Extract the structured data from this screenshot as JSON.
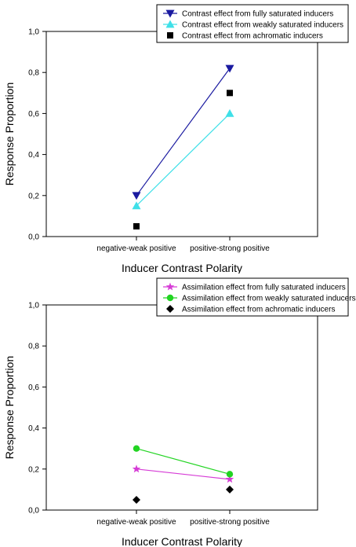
{
  "chart_data": [
    {
      "type": "line",
      "xlabel": "Inducer Contrast Polarity",
      "ylabel": "Response Proportion",
      "categories": [
        "negative-weak positive",
        "positive-strong positive"
      ],
      "ylim": [
        0,
        1
      ],
      "y_ticks": [
        "0,0",
        "0,2",
        "0,4",
        "0,6",
        "0,8",
        "1,0"
      ],
      "grid": false,
      "legend_position": "top-right",
      "series": [
        {
          "name": "Contrast effect from fully saturated inducers",
          "values": [
            0.2,
            0.82
          ],
          "color": "#1a1aa0",
          "marker": "triangle-down",
          "line": true
        },
        {
          "name": "Contrast effect from weakly saturated inducers",
          "values": [
            0.15,
            0.6
          ],
          "color": "#3fe0e8",
          "marker": "triangle-up",
          "line": true
        },
        {
          "name": "Contrast effect from achromatic inducers",
          "values": [
            0.05,
            0.7
          ],
          "color": "#000000",
          "marker": "square",
          "line": false
        }
      ]
    },
    {
      "type": "line",
      "xlabel": "Inducer Contrast Polarity",
      "ylabel": "Response Proportion",
      "categories": [
        "negative-weak positive",
        "positive-strong positive"
      ],
      "ylim": [
        0,
        1
      ],
      "y_ticks": [
        "0,0",
        "0,2",
        "0,4",
        "0,6",
        "0,8",
        "1,0"
      ],
      "grid": false,
      "legend_position": "top-right",
      "series": [
        {
          "name": "Assimilation effect from fully saturated inducers",
          "values": [
            0.2,
            0.15
          ],
          "color": "#d63cd6",
          "marker": "star",
          "line": true
        },
        {
          "name": "Assimilation effect from weakly saturated inducers",
          "values": [
            0.3,
            0.175
          ],
          "color": "#22d422",
          "marker": "circle",
          "line": true
        },
        {
          "name": "Assimilation effect from achromatic inducers",
          "values": [
            0.05,
            0.1
          ],
          "color": "#000000",
          "marker": "diamond",
          "line": false
        }
      ]
    }
  ]
}
